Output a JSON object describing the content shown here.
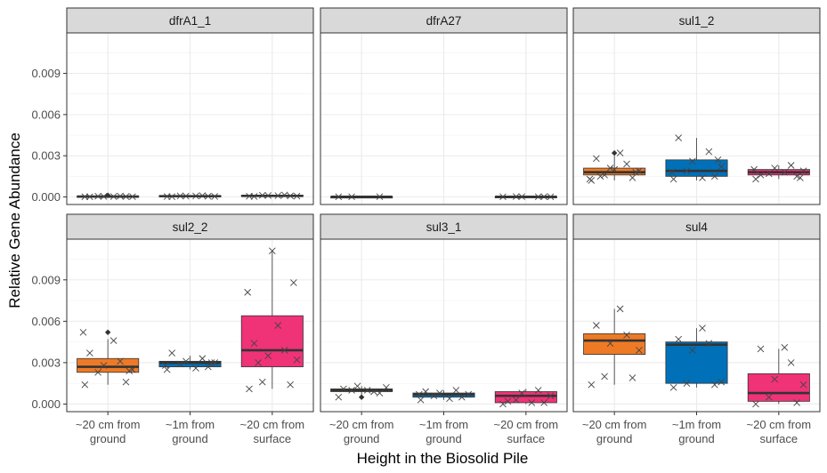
{
  "chart_data": {
    "type": "box",
    "xlabel": "Height in the Biosolid Pile",
    "ylabel": "Relative Gene Abundance",
    "ylim": [
      -0.00055,
      0.01195
    ],
    "yticks": [
      "0.000",
      "0.003",
      "0.006",
      "0.009"
    ],
    "ytick_values": [
      0,
      0.003,
      0.006,
      0.009
    ],
    "categories": [
      {
        "line1": "~20 cm from",
        "line2": "ground",
        "color": "#ee7a26"
      },
      {
        "line1": "~1m from",
        "line2": "ground",
        "color": "#0070b8"
      },
      {
        "line1": "~20 cm from",
        "line2": "surface",
        "color": "#f03277"
      }
    ],
    "grid": true,
    "facets": [
      {
        "title": "dfrA1_1",
        "boxes": [
          {
            "q1": 0.0,
            "median": 3e-05,
            "q3": 7e-05,
            "whisker_low": 0.0,
            "whisker_high": 0.0001,
            "outliers": [
              0.00012
            ],
            "points": [
              1e-05,
              3e-05,
              5e-05,
              2e-05,
              4e-05,
              6e-05,
              1e-05,
              3e-05
            ]
          },
          {
            "q1": 2e-05,
            "median": 5e-05,
            "q3": 0.0001,
            "whisker_low": 0.0,
            "whisker_high": 0.00014,
            "outliers": [],
            "points": [
              3e-05,
              5e-05,
              8e-05,
              4e-05,
              6e-05,
              9e-05,
              2e-05,
              7e-05
            ]
          },
          {
            "q1": 4e-05,
            "median": 8e-05,
            "q3": 0.00013,
            "whisker_low": 0.0,
            "whisker_high": 0.00018,
            "outliers": [],
            "points": [
              5e-05,
              8e-05,
              0.00012,
              6e-05,
              0.0001,
              0.00014,
              4e-05,
              9e-05
            ]
          }
        ]
      },
      {
        "title": "dfrA27",
        "boxes": [
          {
            "q1": 0.0,
            "median": 1e-05,
            "q3": 2e-05,
            "whisker_low": 0.0,
            "whisker_high": 3e-05,
            "outliers": [],
            "points": [
              1e-05,
              2e-05,
              1e-05
            ]
          },
          null,
          {
            "q1": 0.0,
            "median": 1e-05,
            "q3": 3e-05,
            "whisker_low": 0.0,
            "whisker_high": 4e-05,
            "outliers": [],
            "points": [
              1e-05,
              2e-05,
              3e-05,
              1e-05,
              2e-05,
              1e-05
            ]
          }
        ]
      },
      {
        "title": "sul1_2",
        "boxes": [
          {
            "q1": 0.0016,
            "median": 0.0018,
            "q3": 0.0021,
            "whisker_low": 0.0012,
            "whisker_high": 0.003,
            "outliers": [
              0.0032
            ],
            "points": [
              0.0012,
              0.0014,
              0.0016,
              0.0019,
              0.0021,
              0.0024,
              0.0028,
              0.0032,
              0.0013,
              0.0018,
              0.002,
              0.0015
            ]
          },
          {
            "q1": 0.0015,
            "median": 0.0019,
            "q3": 0.0027,
            "whisker_low": 0.0012,
            "whisker_high": 0.0043,
            "outliers": [],
            "points": [
              0.0013,
              0.0015,
              0.0019,
              0.0022,
              0.0026,
              0.0033,
              0.0043,
              0.0014,
              0.0018,
              0.0027
            ]
          },
          {
            "q1": 0.0016,
            "median": 0.0018,
            "q3": 0.002,
            "whisker_low": 0.0013,
            "whisker_high": 0.0023,
            "outliers": [],
            "points": [
              0.0013,
              0.0015,
              0.0017,
              0.0019,
              0.0021,
              0.0023,
              0.0016,
              0.0018,
              0.002,
              0.0014
            ]
          }
        ]
      },
      {
        "title": "sul2_2",
        "boxes": [
          {
            "q1": 0.0023,
            "median": 0.0027,
            "q3": 0.0033,
            "whisker_low": 0.0014,
            "whisker_high": 0.0047,
            "outliers": [
              0.0052
            ],
            "points": [
              0.0014,
              0.0016,
              0.0023,
              0.0025,
              0.0028,
              0.0031,
              0.0037,
              0.0046,
              0.0052,
              0.0024
            ]
          },
          {
            "q1": 0.0027,
            "median": 0.003,
            "q3": 0.0031,
            "whisker_low": 0.0025,
            "whisker_high": 0.0035,
            "outliers": [],
            "points": [
              0.0025,
              0.0027,
              0.0029,
              0.003,
              0.0031,
              0.0033,
              0.0037,
              0.0026,
              0.0028,
              0.003
            ]
          },
          {
            "q1": 0.0027,
            "median": 0.0039,
            "q3": 0.0064,
            "whisker_low": 0.0011,
            "whisker_high": 0.0111,
            "outliers": [],
            "points": [
              0.0011,
              0.0014,
              0.0016,
              0.0032,
              0.0035,
              0.0039,
              0.0044,
              0.0057,
              0.0081,
              0.0088,
              0.0111,
              0.003
            ]
          }
        ]
      },
      {
        "title": "sul3_1",
        "boxes": [
          {
            "q1": 0.0009,
            "median": 0.001,
            "q3": 0.0011,
            "whisker_low": 0.0006,
            "whisker_high": 0.0013,
            "outliers": [
              0.0005
            ],
            "points": [
              0.0005,
              0.0008,
              0.001,
              0.0012,
              0.0013,
              0.0009,
              0.0011,
              0.001
            ]
          },
          {
            "q1": 0.0005,
            "median": 0.0007,
            "q3": 0.0008,
            "whisker_low": 0.0003,
            "whisker_high": 0.001,
            "outliers": [],
            "points": [
              0.0003,
              0.0005,
              0.0006,
              0.0007,
              0.0008,
              0.001,
              0.0009,
              0.0004,
              0.0007
            ]
          },
          {
            "q1": 0.0001,
            "median": 0.0006,
            "q3": 0.0009,
            "whisker_low": 0.0,
            "whisker_high": 0.0011,
            "outliers": [],
            "points": [
              0.0,
              0.0001,
              0.0003,
              0.0006,
              0.0008,
              0.001,
              0.0002,
              0.0001
            ]
          }
        ]
      },
      {
        "title": "sul4",
        "boxes": [
          {
            "q1": 0.0036,
            "median": 0.0046,
            "q3": 0.0051,
            "whisker_low": 0.0014,
            "whisker_high": 0.0069,
            "outliers": [],
            "points": [
              0.0014,
              0.0019,
              0.002,
              0.0039,
              0.0044,
              0.005,
              0.0057,
              0.0069
            ]
          },
          {
            "q1": 0.0015,
            "median": 0.0043,
            "q3": 0.0045,
            "whisker_low": 0.0012,
            "whisker_high": 0.0055,
            "outliers": [],
            "points": [
              0.0012,
              0.0014,
              0.0015,
              0.0016,
              0.0039,
              0.0044,
              0.0047,
              0.0055
            ]
          },
          {
            "q1": 0.0002,
            "median": 0.0008,
            "q3": 0.0022,
            "whisker_low": 0.0,
            "whisker_high": 0.004,
            "outliers": [],
            "points": [
              0.0,
              0.0001,
              0.0005,
              0.0014,
              0.0018,
              0.003,
              0.004,
              0.0041
            ]
          }
        ]
      }
    ]
  }
}
